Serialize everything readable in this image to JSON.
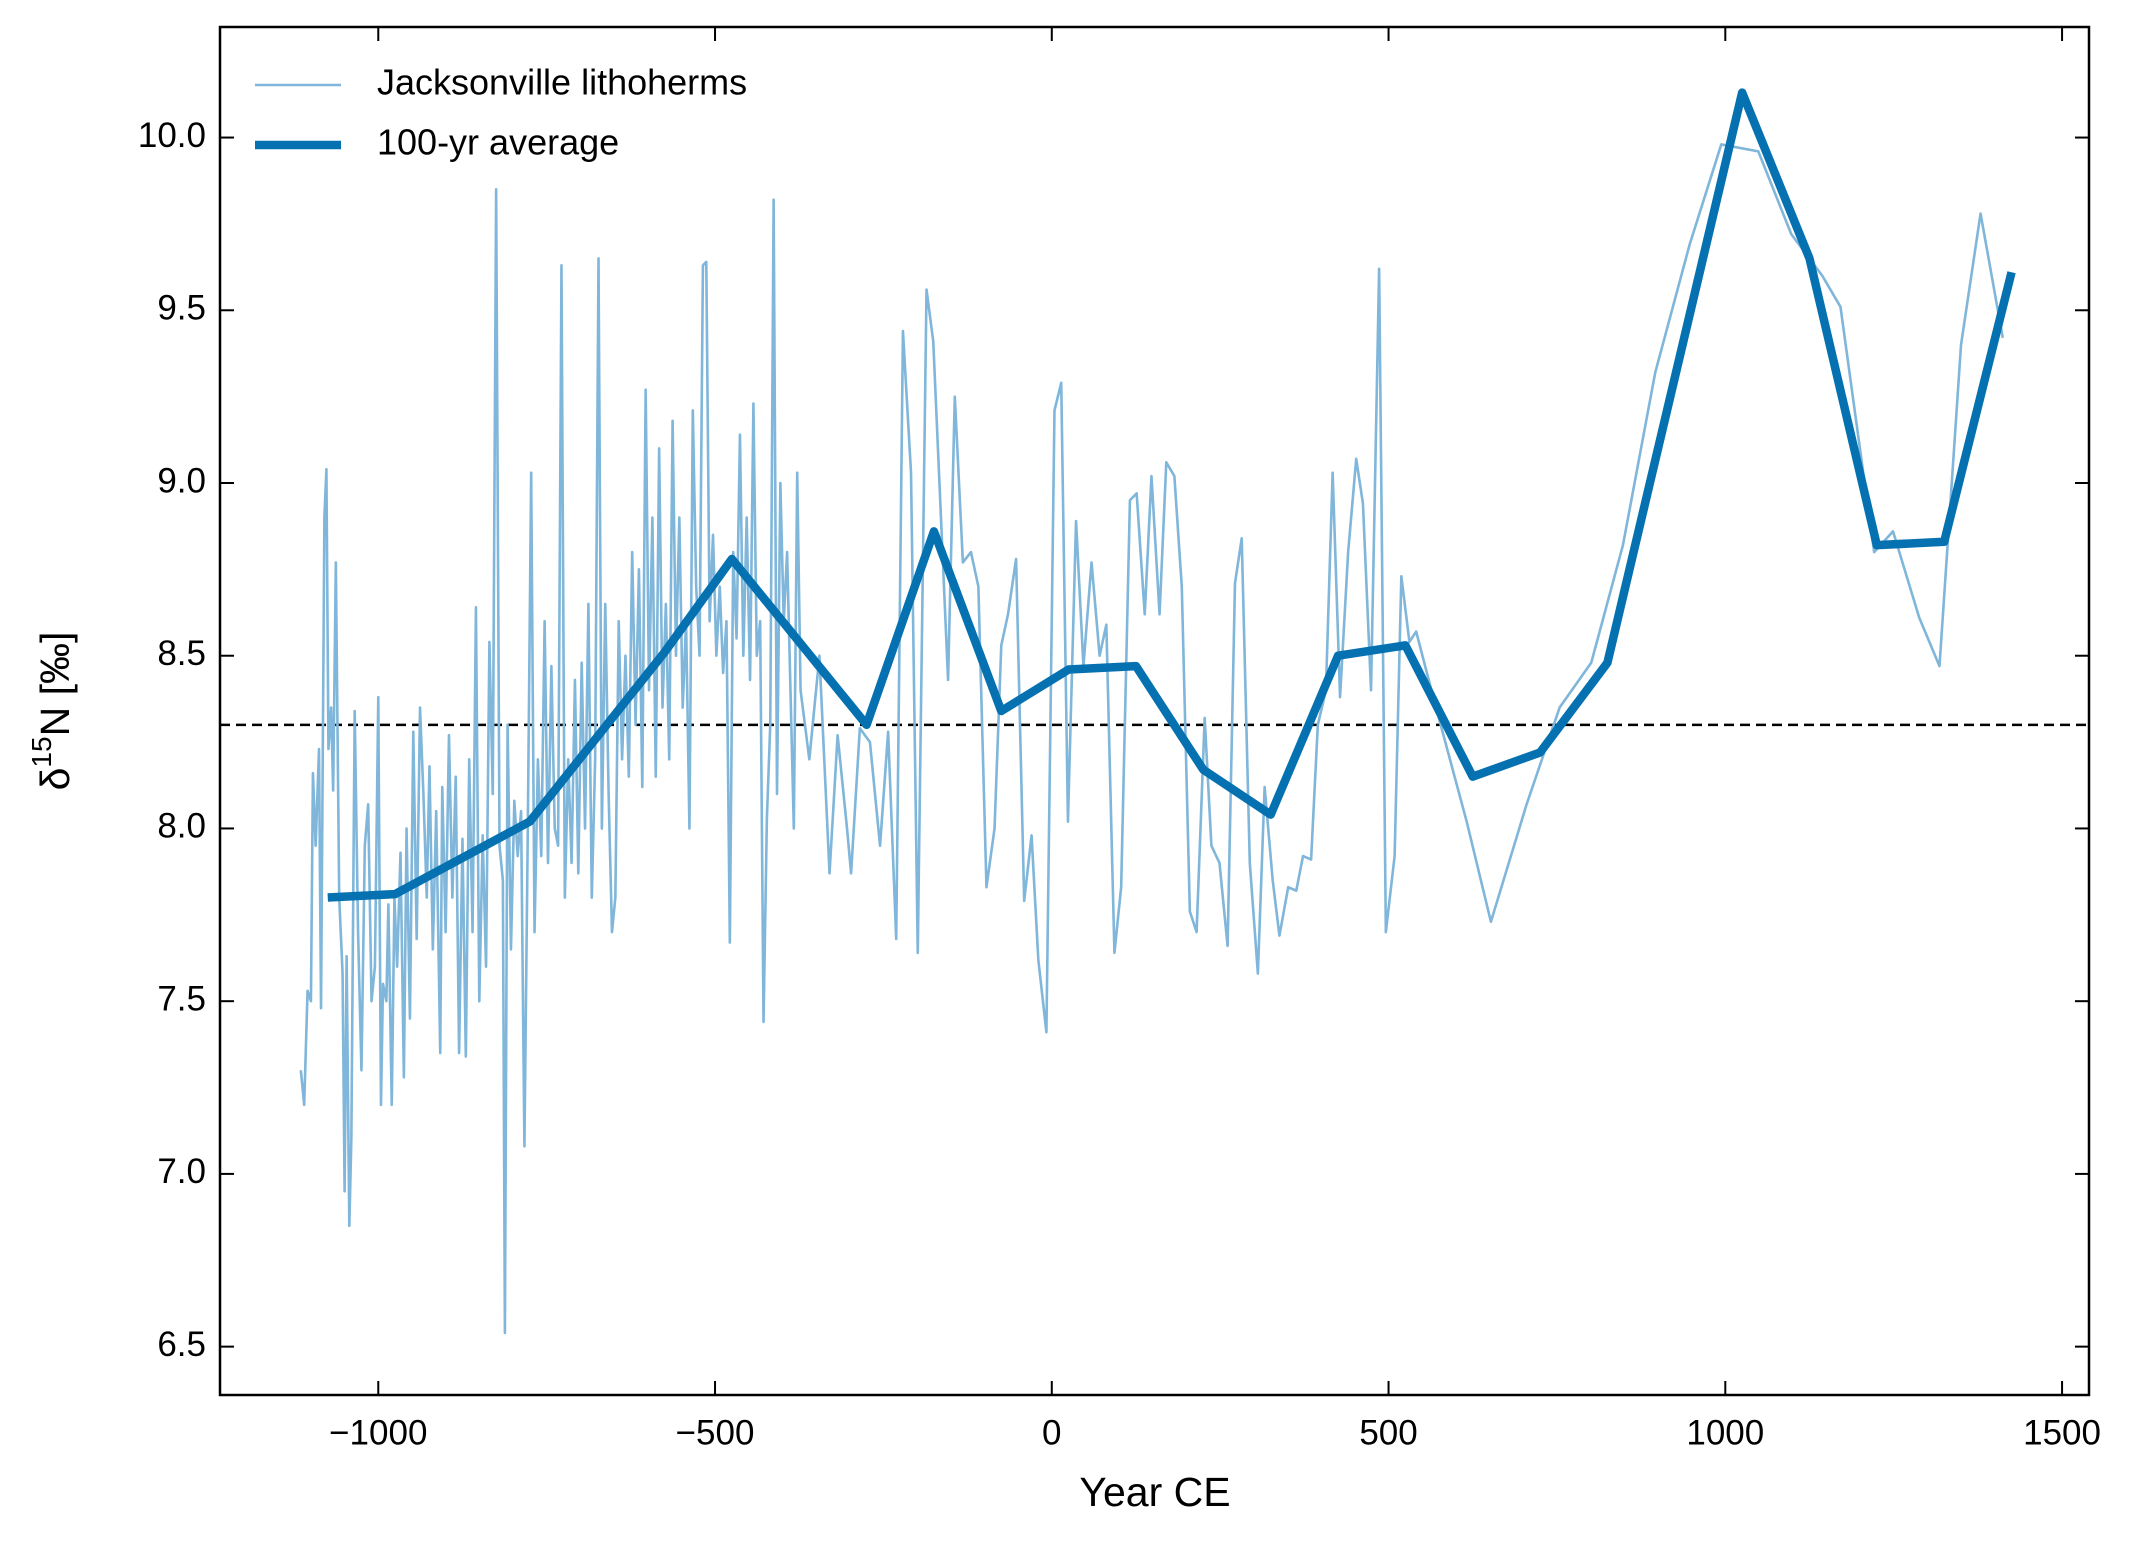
{
  "chart_data": {
    "type": "line",
    "xlabel": "Year CE",
    "ylabel": [
      "δ",
      "15",
      "N [‰]"
    ],
    "xlim": [
      -1235,
      1540
    ],
    "ylim": [
      6.36,
      10.32
    ],
    "xticks": [
      {
        "value": -1000,
        "label": "−1000"
      },
      {
        "value": -500,
        "label": "−500"
      },
      0,
      500,
      1000,
      1500
    ],
    "yticks": [
      6.5,
      {
        "value": 7,
        "label": "7.0"
      },
      7.5,
      {
        "value": 8,
        "label": "8.0"
      },
      8.5,
      {
        "value": 9,
        "label": "9.0"
      },
      9.5,
      {
        "value": 10,
        "label": "10.0"
      }
    ],
    "hline": 8.3,
    "legend": "upper left",
    "series": [
      {
        "name": "Jacksonville lithoherms",
        "color": "#7fb6da",
        "x": [
          -1115,
          -1110,
          -1105,
          -1100,
          -1097,
          -1093,
          -1088,
          -1085,
          -1080,
          -1077,
          -1074,
          -1070,
          -1067,
          -1063,
          -1058,
          -1053,
          -1050,
          -1047,
          -1043,
          -1040,
          -1035,
          -1030,
          -1025,
          -1020,
          -1015,
          -1010,
          -1005,
          -1000,
          -996,
          -993,
          -988,
          -985,
          -980,
          -976,
          -972,
          -967,
          -962,
          -958,
          -953,
          -948,
          -943,
          -938,
          -933,
          -928,
          -924,
          -919,
          -914,
          -908,
          -905,
          -900,
          -895,
          -890,
          -885,
          -880,
          -875,
          -870,
          -865,
          -860,
          -855,
          -850,
          -845,
          -840,
          -835,
          -830,
          -825,
          -820,
          -815,
          -812,
          -808,
          -803,
          -798,
          -793,
          -788,
          -783,
          -778,
          -773,
          -768,
          -763,
          -758,
          -753,
          -748,
          -743,
          -738,
          -733,
          -728,
          -723,
          -718,
          -713,
          -708,
          -703,
          -698,
          -693,
          -688,
          -683,
          -678,
          -673,
          -668,
          -663,
          -658,
          -653,
          -648,
          -643,
          -638,
          -633,
          -628,
          -623,
          -618,
          -613,
          -608,
          -603,
          -598,
          -593,
          -588,
          -583,
          -578,
          -573,
          -568,
          -563,
          -558,
          -553,
          -548,
          -543,
          -538,
          -533,
          -528,
          -523,
          -518,
          -513,
          -508,
          -503,
          -498,
          -493,
          -488,
          -483,
          -478,
          -473,
          -468,
          -463,
          -458,
          -453,
          -448,
          -443,
          -438,
          -433,
          -428,
          -423,
          -418,
          -413,
          -408,
          -403,
          -398,
          -393,
          -388,
          -383,
          -378,
          -373,
          -360,
          -345,
          -330,
          -318,
          -304,
          -298,
          -285,
          -270,
          -255,
          -243,
          -231,
          -221,
          -209,
          -199,
          -186,
          -176,
          -154,
          -144,
          -132,
          -120,
          -109,
          -97,
          -85,
          -75,
          -65,
          -53,
          -41,
          -30,
          -20,
          -8,
          4,
          14,
          24,
          36,
          47,
          59,
          71,
          81,
          93,
          103,
          116,
          126,
          138,
          148,
          160,
          170,
          182,
          193,
          205,
          215,
          227,
          237,
          249,
          261,
          272,
          282,
          294,
          306,
          316,
          328,
          338,
          351,
          363,
          373,
          385,
          395,
          407,
          417,
          428,
          440,
          452,
          462,
          474,
          486,
          496,
          509,
          519,
          531,
          541,
          565,
          616,
          652,
          705,
          754,
          801,
          848,
          896,
          947,
          994,
          1049,
          1098,
          1144,
          1171,
          1221,
          1249,
          1288,
          1318,
          1350,
          1379,
          1412
        ],
        "values": [
          7.3,
          7.2,
          7.53,
          7.5,
          8.16,
          7.95,
          8.23,
          7.48,
          8.9,
          9.04,
          8.23,
          8.35,
          8.11,
          8.77,
          7.8,
          7.58,
          6.95,
          7.63,
          6.85,
          7.1,
          8.34,
          7.7,
          7.3,
          7.95,
          8.07,
          7.5,
          7.6,
          8.38,
          7.2,
          7.55,
          7.5,
          7.78,
          7.2,
          7.8,
          7.6,
          7.93,
          7.28,
          8.0,
          7.45,
          8.28,
          7.68,
          8.35,
          8.1,
          7.8,
          8.18,
          7.65,
          8.05,
          7.35,
          8.12,
          7.7,
          8.27,
          7.8,
          8.15,
          7.35,
          7.97,
          7.34,
          8.2,
          7.7,
          8.64,
          7.5,
          7.98,
          7.6,
          8.54,
          8.1,
          9.85,
          7.95,
          7.85,
          6.54,
          8.3,
          7.65,
          8.08,
          7.92,
          8.05,
          7.08,
          8.0,
          9.03,
          7.7,
          8.2,
          7.92,
          8.6,
          7.9,
          8.47,
          8.0,
          7.95,
          9.63,
          7.8,
          8.2,
          7.9,
          8.43,
          7.87,
          8.48,
          8.0,
          8.65,
          7.8,
          8.2,
          9.65,
          8.0,
          8.65,
          8.1,
          7.7,
          7.8,
          8.6,
          8.2,
          8.5,
          8.15,
          8.8,
          8.3,
          8.75,
          8.12,
          9.27,
          8.4,
          8.9,
          8.15,
          9.1,
          8.35,
          8.65,
          8.2,
          9.18,
          8.5,
          8.9,
          8.35,
          8.6,
          8.0,
          9.21,
          8.7,
          8.5,
          9.63,
          9.64,
          8.6,
          8.85,
          8.5,
          8.7,
          8.45,
          8.6,
          7.67,
          8.8,
          8.55,
          9.14,
          8.5,
          8.9,
          8.43,
          9.23,
          8.5,
          8.6,
          7.44,
          8.03,
          8.3,
          9.82,
          8.1,
          9.0,
          8.6,
          8.8,
          8.4,
          8.0,
          9.03,
          8.4,
          8.2,
          8.5,
          7.87,
          8.27,
          8.0,
          7.87,
          8.29,
          8.25,
          7.95,
          8.28,
          7.68,
          9.44,
          9.03,
          7.64,
          9.56,
          9.41,
          8.43,
          9.25,
          8.77,
          8.8,
          8.7,
          7.83,
          8.0,
          8.53,
          8.62,
          8.78,
          7.79,
          7.98,
          7.62,
          7.41,
          9.21,
          9.29,
          8.02,
          8.89,
          8.47,
          8.77,
          8.5,
          8.59,
          7.64,
          7.83,
          8.95,
          8.97,
          8.62,
          9.02,
          8.62,
          9.06,
          9.02,
          8.7,
          7.76,
          7.7,
          8.32,
          7.95,
          7.9,
          7.66,
          8.71,
          8.84,
          7.9,
          7.58,
          8.12,
          7.85,
          7.69,
          7.83,
          7.82,
          7.92,
          7.91,
          8.3,
          8.4,
          9.03,
          8.38,
          8.8,
          9.07,
          8.94,
          8.4,
          9.62,
          7.7,
          7.92,
          8.73,
          8.54,
          8.57,
          8.39,
          8.02,
          7.73,
          8.07,
          8.35,
          8.48,
          8.82,
          9.32,
          9.69,
          9.98,
          9.96,
          9.72,
          9.6,
          9.51,
          8.8,
          8.86,
          8.61,
          8.47,
          9.4,
          9.78,
          9.42
        ]
      },
      {
        "name": "100-yr average",
        "color": "#0571b0",
        "x": [
          -1075,
          -975,
          -775,
          -575,
          -475,
          -275,
          -175,
          -75,
          25,
          125,
          225,
          325,
          425,
          525,
          625,
          725,
          825,
          1025,
          1125,
          1225,
          1325,
          1425
        ],
        "values": [
          7.8,
          7.81,
          8.02,
          8.51,
          8.78,
          8.3,
          8.86,
          8.34,
          8.46,
          8.47,
          8.17,
          8.04,
          8.5,
          8.53,
          8.15,
          8.22,
          8.48,
          10.13,
          9.65,
          8.82,
          8.83,
          9.61
        ]
      }
    ]
  }
}
